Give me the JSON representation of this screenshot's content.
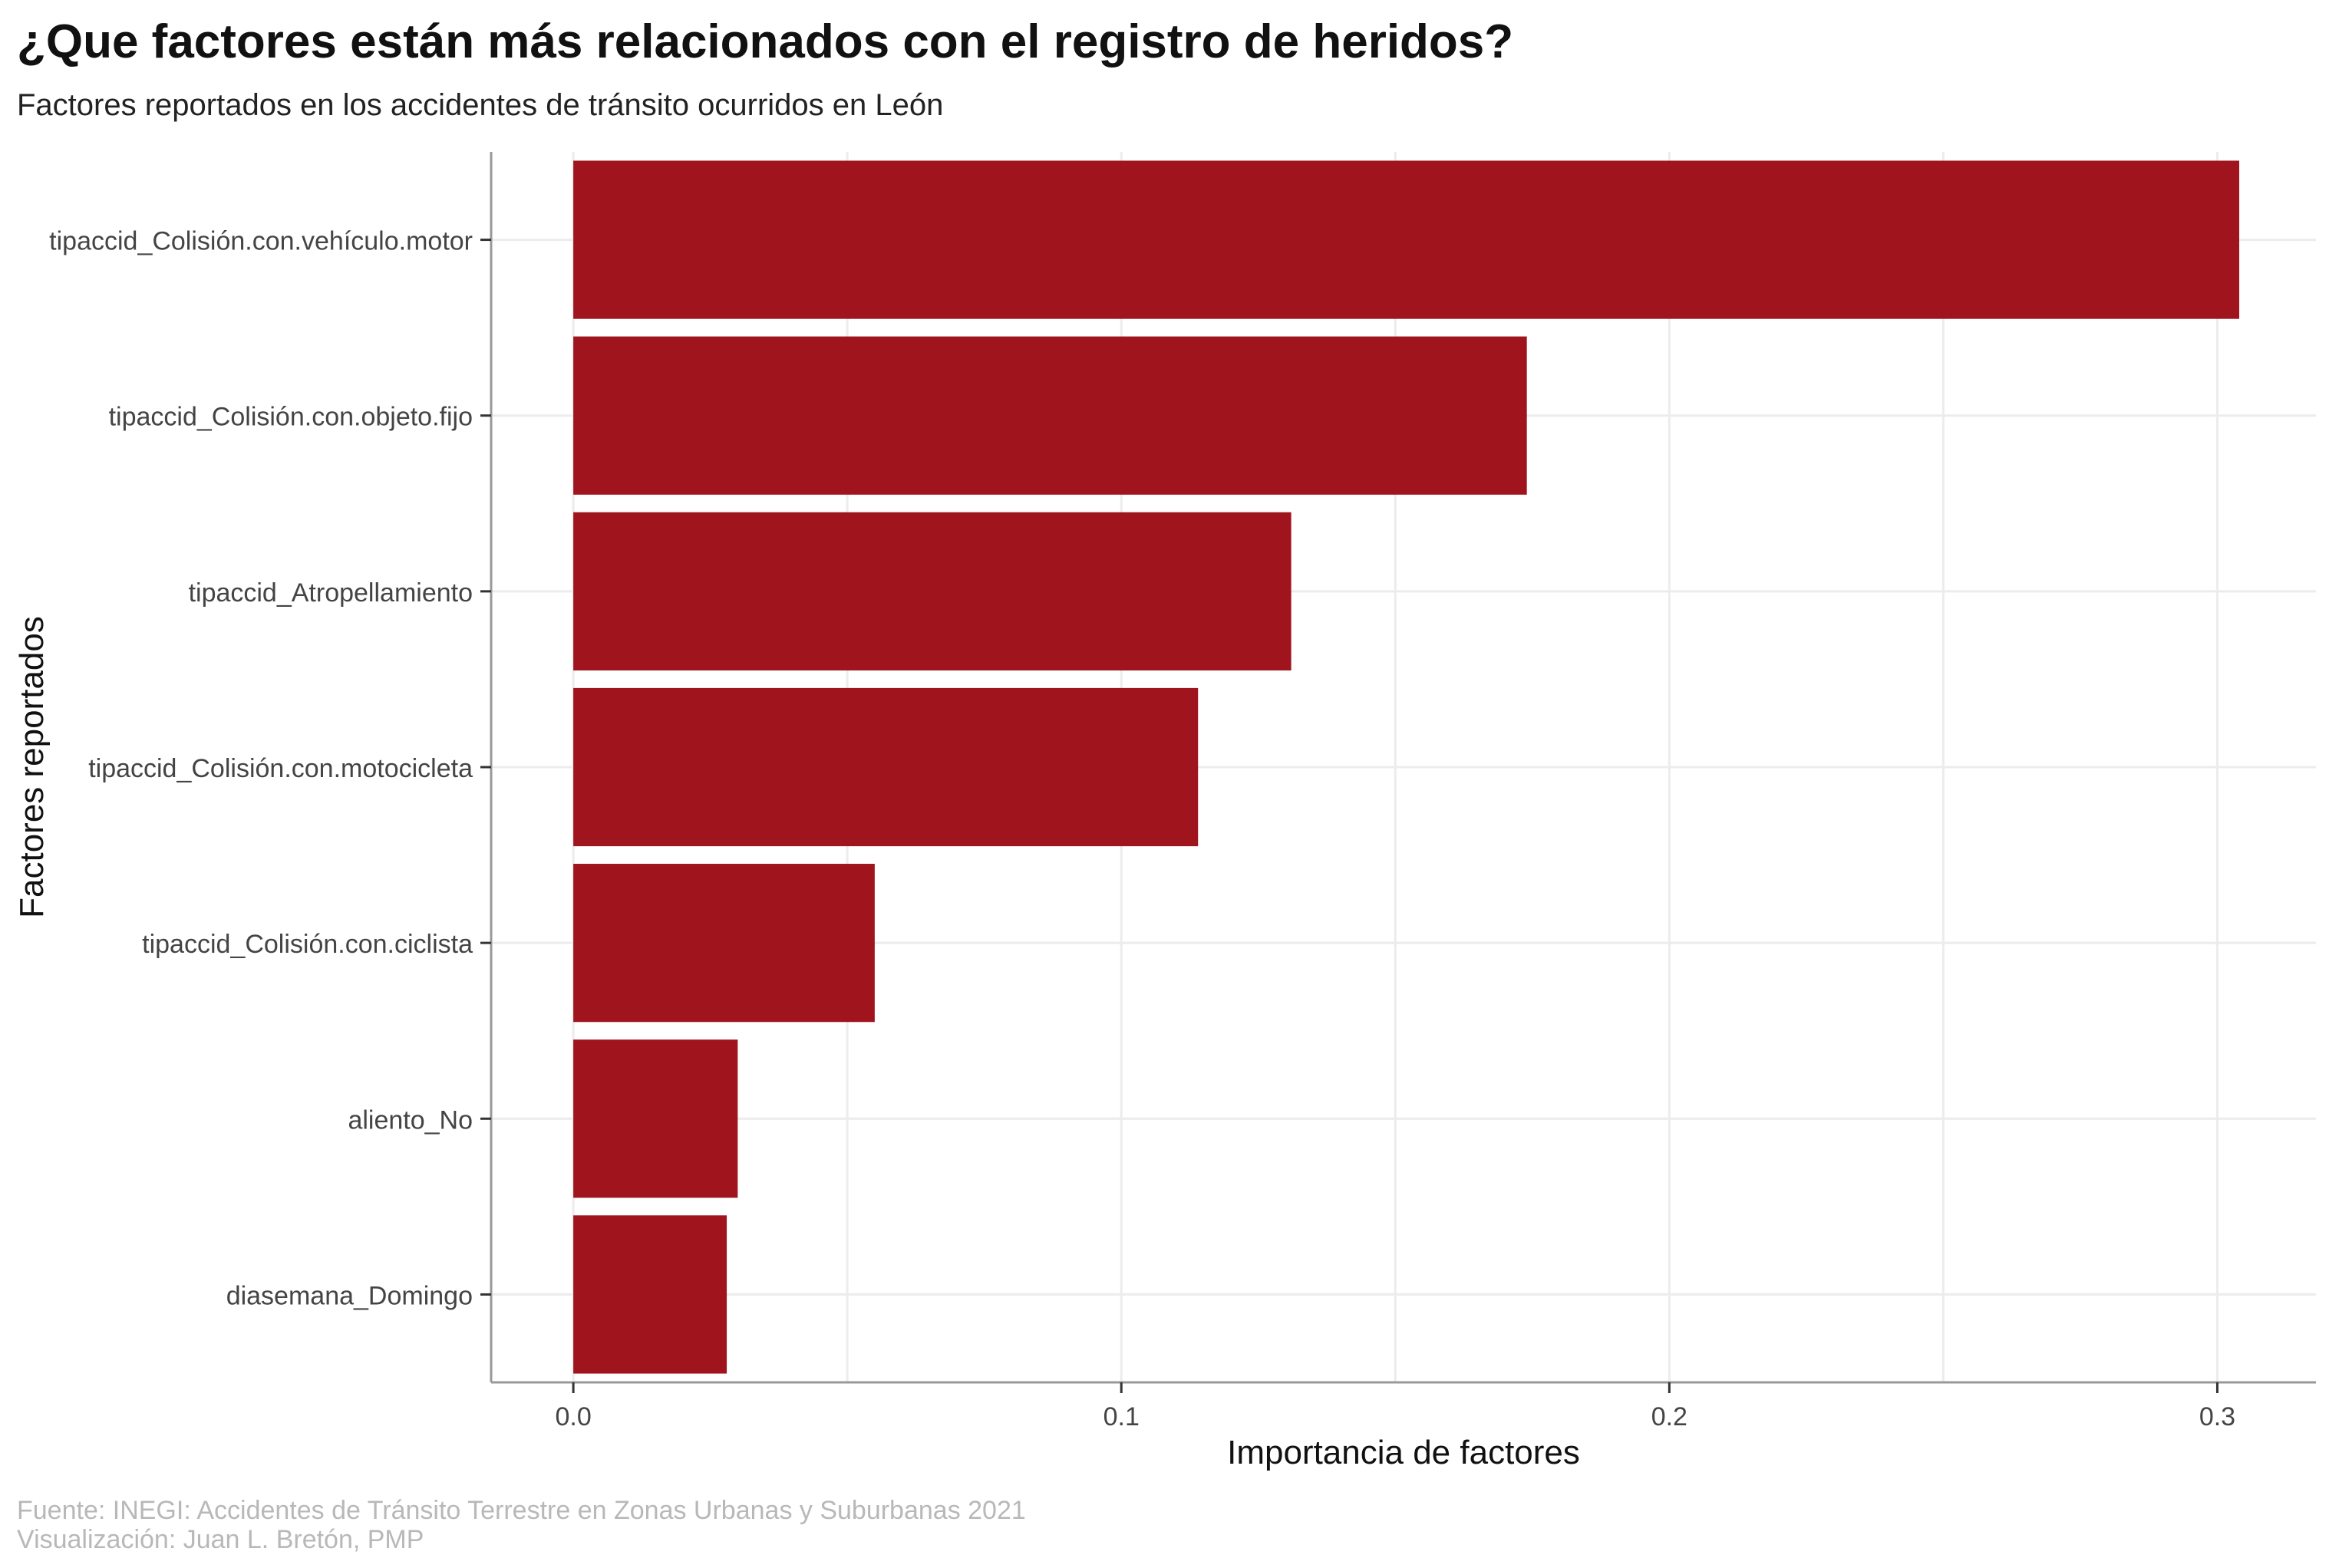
{
  "chart_data": {
    "type": "bar",
    "orientation": "horizontal",
    "title": "¿Que factores están más relacionados con el registro de heridos?",
    "subtitle": "Factores reportados en los accidentes de tránsito ocurridos en León",
    "xlabel": "Importancia de factores",
    "ylabel": "Factores reportados",
    "categories": [
      "tipaccid_Colisión.con.vehículo.motor",
      "tipaccid_Colisión.con.objeto.fijo",
      "tipaccid_Atropellamiento",
      "tipaccid_Colisión.con.motocicleta",
      "tipaccid_Colisión.con.ciclista",
      "aliento_No",
      "diasemana_Domingo"
    ],
    "values": [
      0.304,
      0.174,
      0.131,
      0.114,
      0.055,
      0.03,
      0.028
    ],
    "xlim": [
      -0.015,
      0.318
    ],
    "xticks": [
      0.0,
      0.1,
      0.2,
      0.3
    ],
    "xtick_labels": [
      "0.0",
      "0.1",
      "0.2",
      "0.3"
    ],
    "bar_color": "#a0141e",
    "grid": true,
    "caption_lines": [
      "Fuente: INEGI: Accidentes de Tránsito Terrestre en Zonas Urbanas y Suburbanas 2021",
      "Visualización: Juan L. Bretón, PMP"
    ]
  }
}
